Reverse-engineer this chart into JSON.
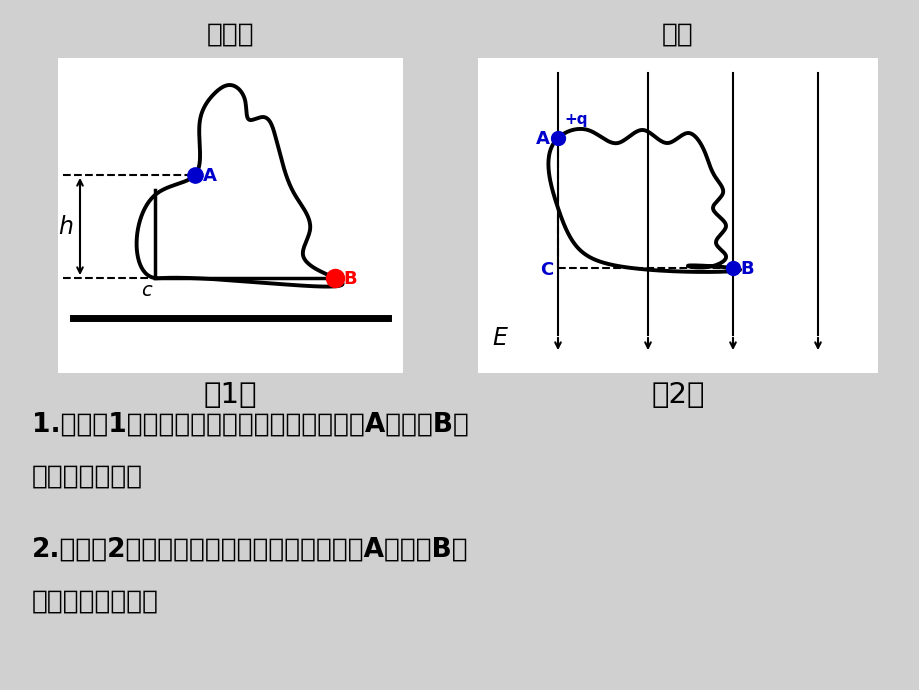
{
  "bg_color": "#d0d0d0",
  "title1": "重力场",
  "title2": "电场",
  "label1": "（1）",
  "label2": "（2）",
  "text1": "1.如图（1），分别沿三个不同路径，小球从A运动到B，",
  "text2": "重力做功多大？",
  "text3": "2.如图（2），分别沿三个不同路径，小球从A运动到B，",
  "text4": "电场力做功多大？",
  "blue_color": "#0000cc",
  "red_color": "#ff0000",
  "black_color": "#000000",
  "white_color": "#ffffff",
  "title_fontsize": 19,
  "text_fontsize": 19,
  "label_fontsize": 21
}
